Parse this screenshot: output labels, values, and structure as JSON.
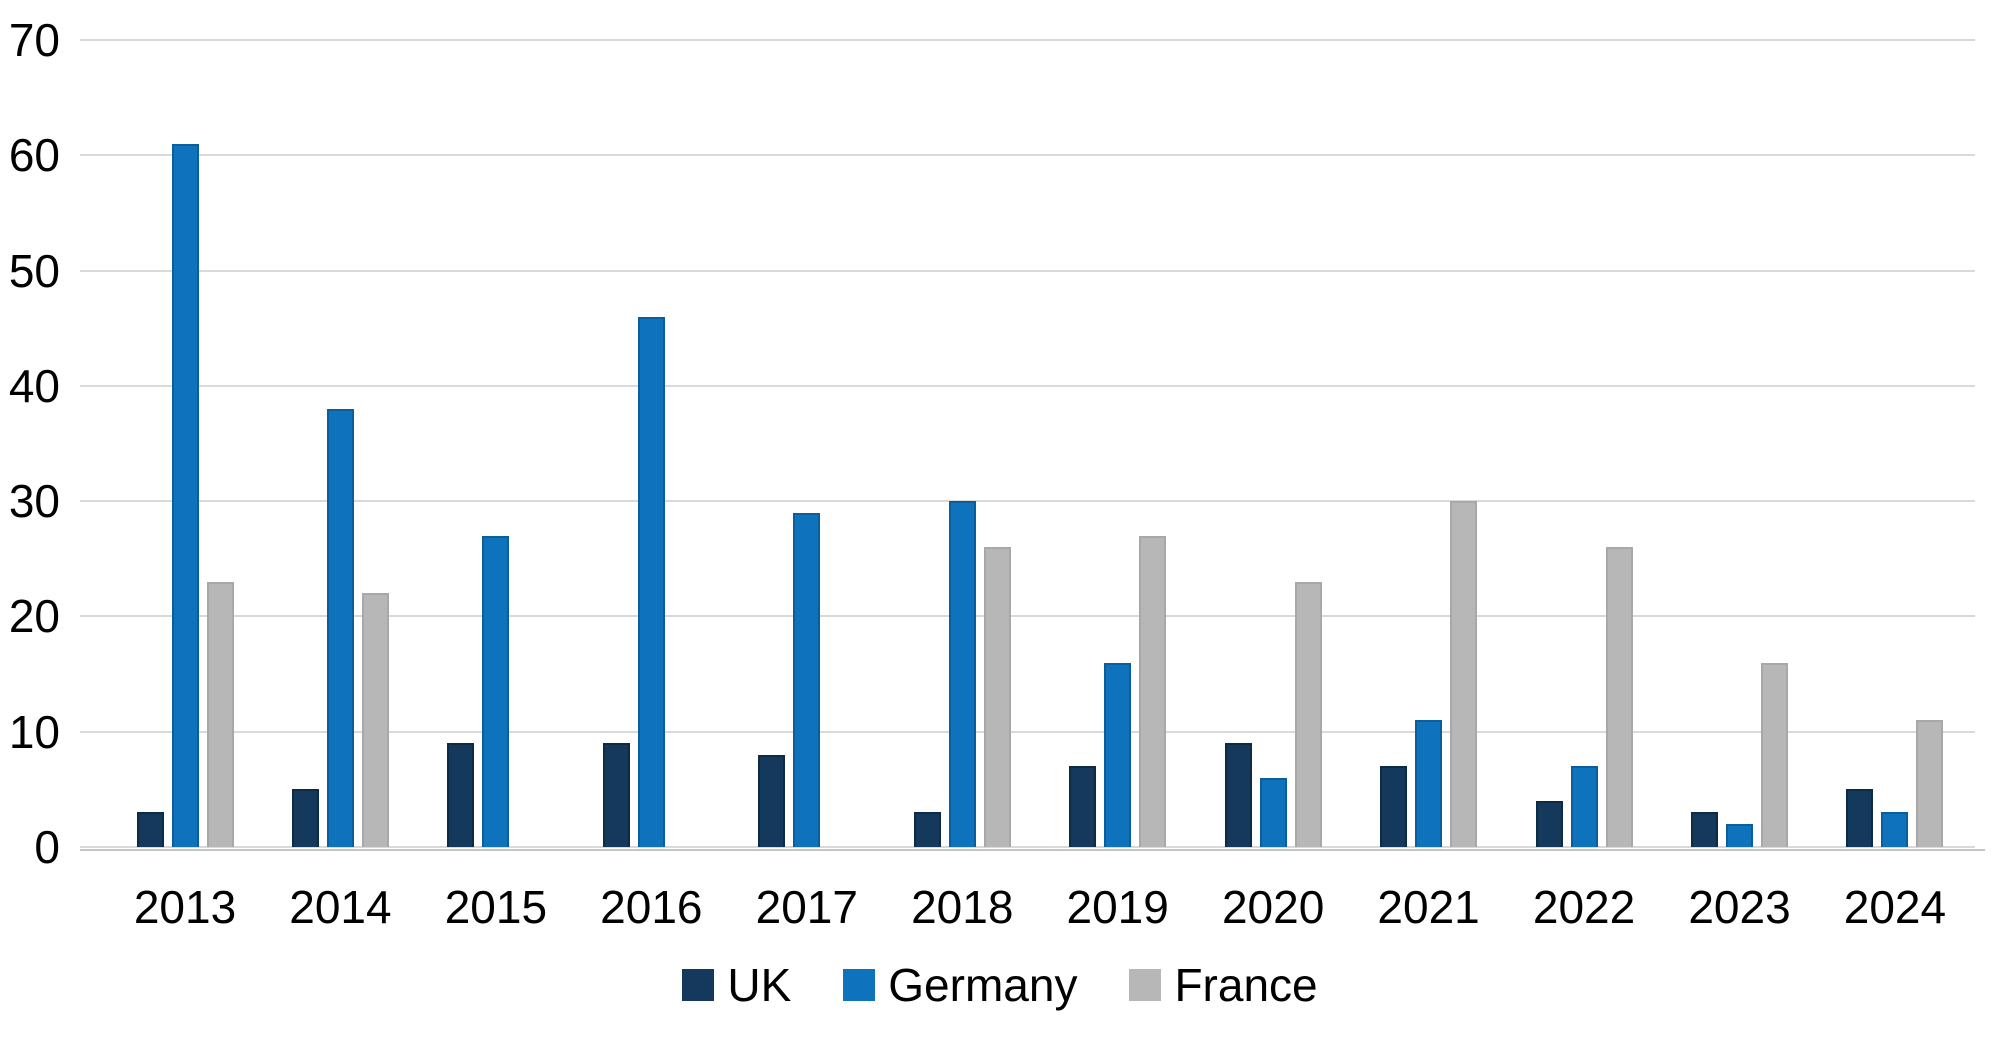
{
  "chart_data": {
    "type": "bar",
    "title": "",
    "xlabel": "",
    "ylabel": "",
    "categories": [
      "2013",
      "2014",
      "2015",
      "2016",
      "2017",
      "2018",
      "2019",
      "2020",
      "2021",
      "2022",
      "2023",
      "2024"
    ],
    "series": [
      {
        "name": "UK",
        "color": "#14395C",
        "border_color": "#0E2B46",
        "values": [
          3,
          5,
          9,
          9,
          8,
          3,
          7,
          9,
          7,
          4,
          3,
          5
        ]
      },
      {
        "name": "Germany",
        "color": "#0F72BC",
        "border_color": "#0A5E9C",
        "values": [
          61,
          38,
          27,
          46,
          29,
          30,
          16,
          6,
          11,
          7,
          2,
          3
        ]
      },
      {
        "name": "France",
        "color": "#B7B7B7",
        "border_color": "#A8A8A8",
        "values": [
          23,
          22,
          null,
          null,
          null,
          26,
          27,
          23,
          30,
          26,
          16,
          11
        ]
      }
    ],
    "ylim": [
      0,
      70
    ],
    "yticks": [
      0,
      10,
      20,
      30,
      40,
      50,
      60,
      70
    ],
    "grid": "horizontal",
    "legend_position": "bottom",
    "legend_labels": [
      "UK",
      "Germany",
      "France"
    ]
  },
  "colors": {
    "background": "#FFFFFF",
    "gridline": "#D9D9D9",
    "axis_line": "#C6C6C6",
    "text": "#000000"
  }
}
